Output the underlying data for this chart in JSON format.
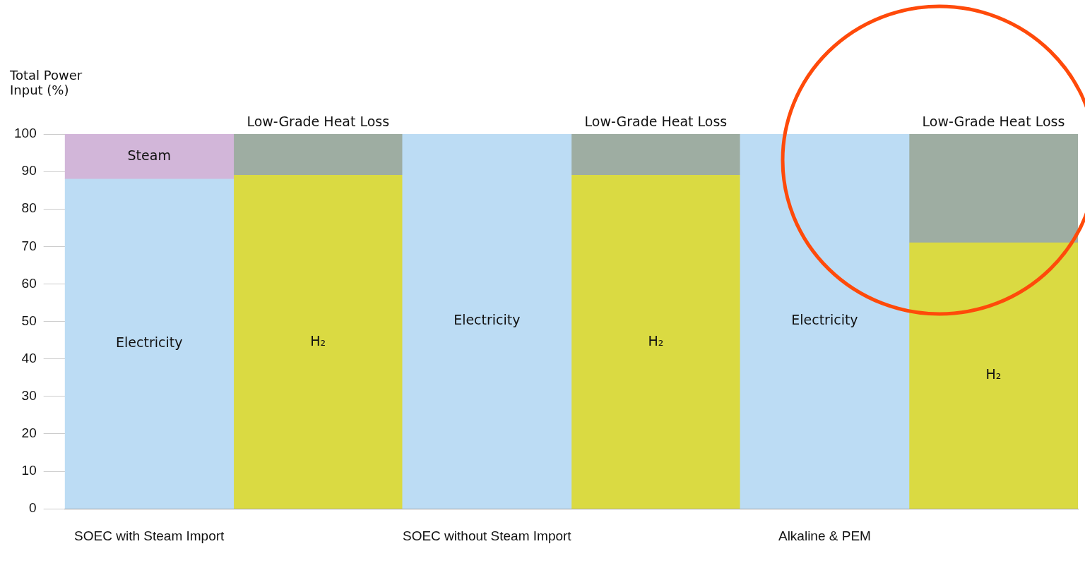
{
  "chart_data": {
    "type": "bar",
    "stacked": true,
    "ylabel": "Total Power Input (%)",
    "categories": [
      "SOEC with Steam Import",
      null,
      "SOEC without Steam Import",
      null,
      "Alkaline & PEM",
      null
    ],
    "series": [
      {
        "name": "Electricity",
        "color": "#bcdcf4",
        "values": [
          88,
          null,
          100,
          null,
          100,
          null
        ]
      },
      {
        "name": "Steam",
        "color": "#d2b6d9",
        "values": [
          12,
          null,
          null,
          null,
          null,
          null
        ]
      },
      {
        "name": "H₂",
        "color": "#dada42",
        "values": [
          null,
          89,
          null,
          89,
          null,
          71
        ]
      },
      {
        "name": "Low-Grade Heat Loss",
        "color": "#9eada2",
        "values": [
          null,
          11,
          null,
          11,
          null,
          29
        ]
      }
    ],
    "ylim": [
      0,
      100
    ],
    "yticks": [
      0,
      10,
      20,
      30,
      40,
      50,
      60,
      70,
      80,
      90,
      100
    ],
    "legend": false
  }
}
